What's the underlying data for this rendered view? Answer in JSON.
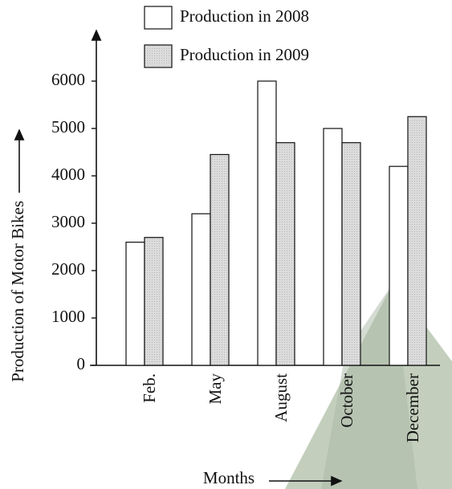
{
  "chart_data": {
    "type": "bar",
    "y_label": "Production of Motor Bikes",
    "x_label": "Months",
    "categories": [
      "Feb.",
      "May",
      "August",
      "October",
      "December"
    ],
    "series": [
      {
        "name": "Production in 2008",
        "color": "#ffffff",
        "values": [
          2600,
          3200,
          6000,
          5000,
          4200
        ]
      },
      {
        "name": "Production in 2009",
        "color": "#d9d9d9",
        "values": [
          2700,
          4450,
          4700,
          4700,
          5250
        ]
      }
    ],
    "ylim": [
      0,
      6000
    ],
    "yticks": [
      0,
      1000,
      2000,
      3000,
      4000,
      5000,
      6000
    ],
    "grid": false
  }
}
